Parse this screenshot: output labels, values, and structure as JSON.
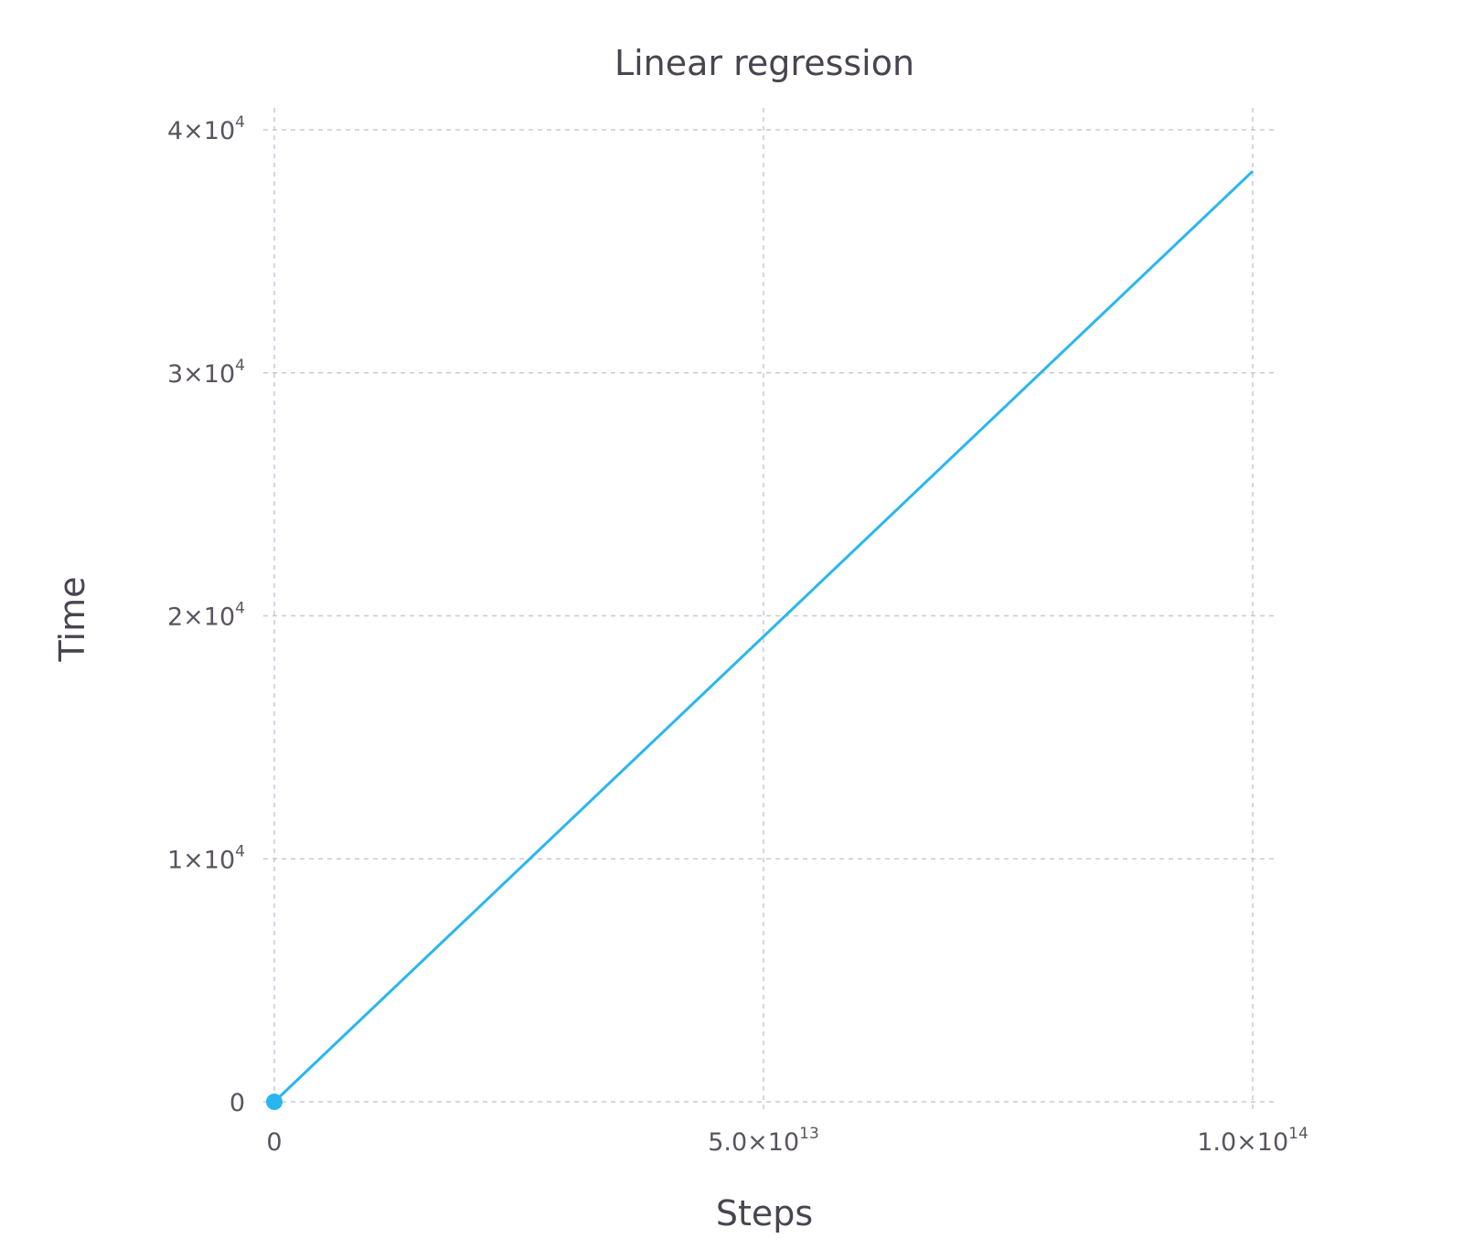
{
  "chart_data": {
    "type": "line",
    "title": "Linear regression",
    "xlabel": "Steps",
    "ylabel": "Time",
    "xlim": [
      0,
      100000000000000
    ],
    "ylim": [
      0,
      40000
    ],
    "grid": true,
    "legend": "none",
    "x_ticks": [
      {
        "value": 0,
        "mantissa": "0",
        "exp": ""
      },
      {
        "value": 50000000000000,
        "mantissa": "5.0×10",
        "exp": "13"
      },
      {
        "value": 100000000000000,
        "mantissa": "1.0×10",
        "exp": "14"
      }
    ],
    "y_ticks": [
      {
        "value": 0,
        "mantissa": "0",
        "exp": ""
      },
      {
        "value": 10000,
        "mantissa": "1×10",
        "exp": "4"
      },
      {
        "value": 20000,
        "mantissa": "2×10",
        "exp": "4"
      },
      {
        "value": 30000,
        "mantissa": "3×10",
        "exp": "4"
      },
      {
        "value": 40000,
        "mantissa": "4×10",
        "exp": "4"
      }
    ],
    "series": [
      {
        "type": "line",
        "color": "#29b6f0",
        "x": [
          0,
          100000000000000
        ],
        "y": [
          0,
          38300
        ]
      },
      {
        "type": "scatter",
        "color": "#29b6f0",
        "x": [
          0
        ],
        "y": [
          0
        ]
      }
    ]
  }
}
